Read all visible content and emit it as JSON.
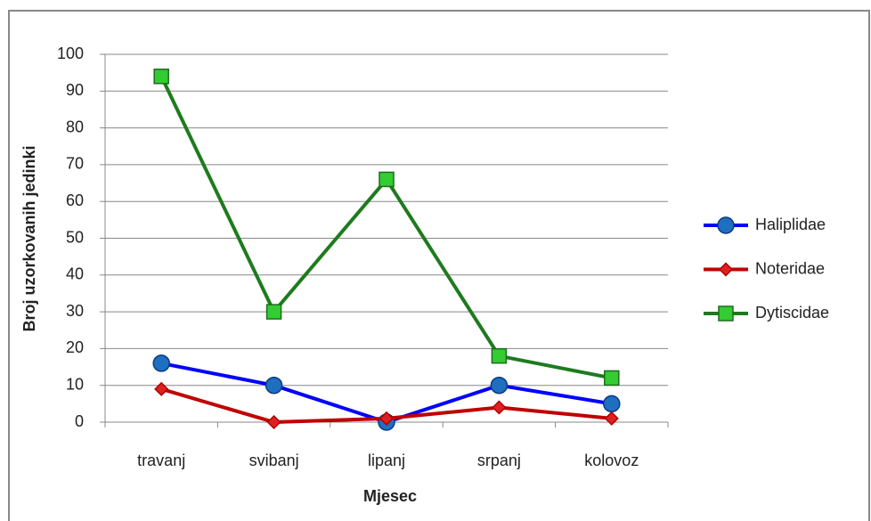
{
  "chart_data": {
    "type": "line",
    "categories": [
      "travanj",
      "svibanj",
      "lipanj",
      "srpanj",
      "kolovoz"
    ],
    "series": [
      {
        "name": "Haliplidae",
        "color": "#0000ff",
        "marker": "circle",
        "marker_color": "#1f6fc0",
        "values": [
          16,
          10,
          0,
          10,
          5
        ]
      },
      {
        "name": "Noteridae",
        "color": "#c00000",
        "marker": "diamond",
        "marker_color": "#e02020",
        "values": [
          9,
          0,
          1,
          4,
          1
        ]
      },
      {
        "name": "Dytiscidae",
        "color": "#1e7b1e",
        "marker": "square",
        "marker_color": "#33cc33",
        "values": [
          94,
          30,
          66,
          18,
          12
        ]
      }
    ],
    "xlabel": "Mjesec",
    "ylabel": "Broj uzorkovanih jedinki",
    "ylim": [
      0,
      100
    ],
    "yticks": [
      0,
      10,
      20,
      30,
      40,
      50,
      60,
      70,
      80,
      90,
      100
    ],
    "grid": true,
    "legend": "right"
  }
}
